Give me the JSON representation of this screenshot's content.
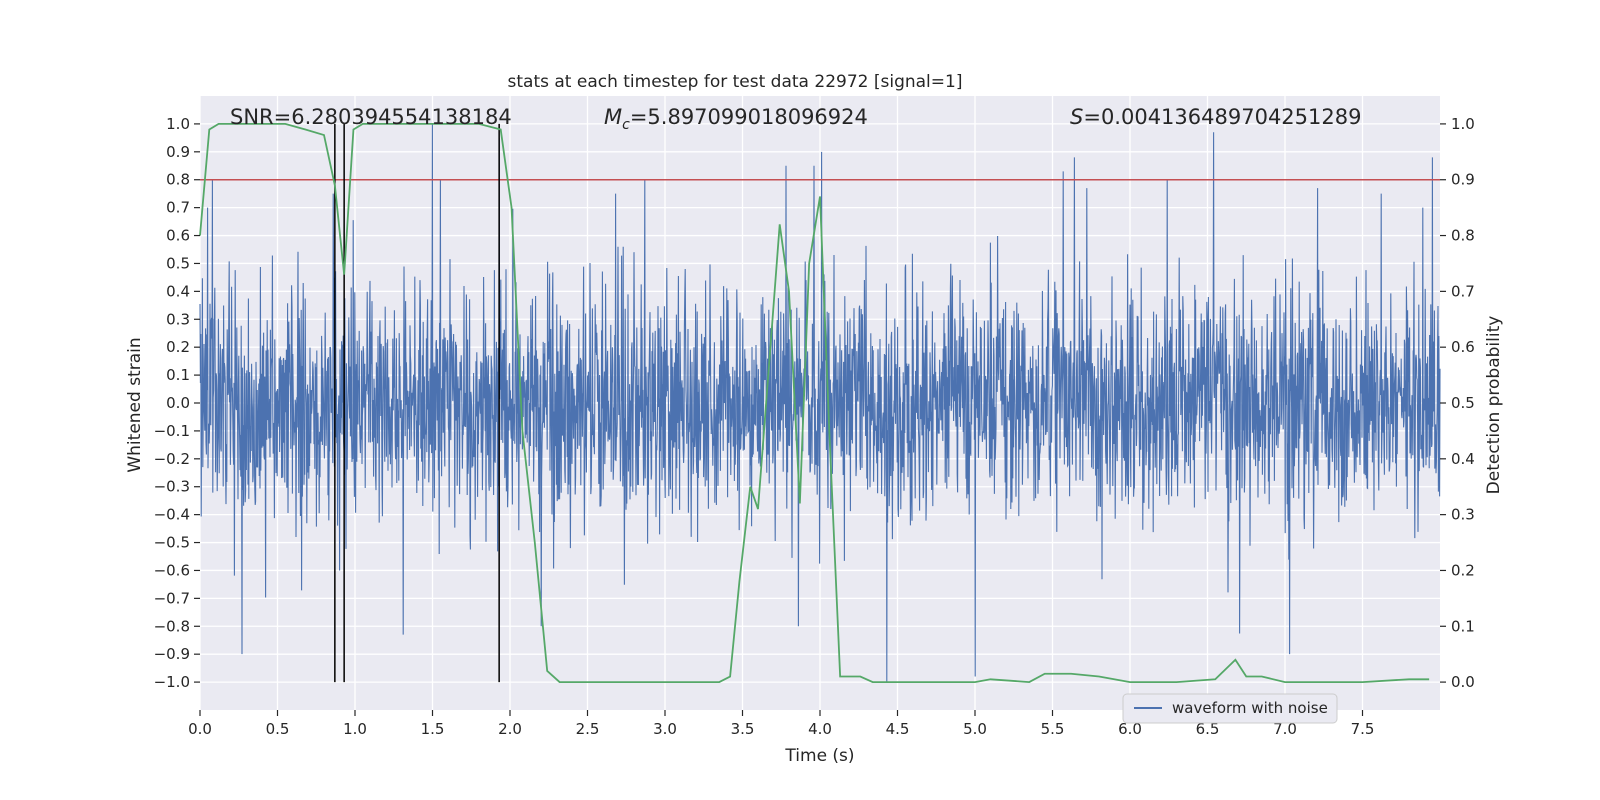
{
  "chart_data": {
    "type": "line",
    "title": "stats at each timestep for test data 22972 [signal=1]",
    "xlabel": "Time (s)",
    "ylabel_left": "Whitened strain",
    "ylabel_right": "Detection probability",
    "xlim": [
      0.0,
      8.0
    ],
    "ylim_left": [
      -1.1,
      1.1
    ],
    "ylim_right": [
      -0.05,
      1.05
    ],
    "xticks": [
      "0.0",
      "0.5",
      "1.0",
      "1.5",
      "2.0",
      "2.5",
      "3.0",
      "3.5",
      "4.0",
      "4.5",
      "5.0",
      "5.5",
      "6.0",
      "6.5",
      "7.0",
      "7.5"
    ],
    "yticks_left": [
      "1.0",
      "0.9",
      "0.8",
      "0.7",
      "0.6",
      "0.5",
      "0.4",
      "0.3",
      "0.2",
      "0.1",
      "0.0",
      "-0.1",
      "-0.2",
      "-0.3",
      "-0.4",
      "-0.5",
      "-0.6",
      "-0.7",
      "-0.8",
      "-0.9",
      "-1.0"
    ],
    "yticks_right": [
      "1.0",
      "0.9",
      "0.8",
      "0.7",
      "0.6",
      "0.5",
      "0.4",
      "0.3",
      "0.2",
      "0.1",
      "0.0"
    ],
    "annotations": {
      "snr": "SNR=6.280394554138184",
      "mc_symbol": "M",
      "mc_sub": "c",
      "mc_value": "=5.897099018096924",
      "s_symbol": "S",
      "s_value": "=0.004136489704251289"
    },
    "legend": {
      "label": "waveform with noise",
      "loc": "lower right"
    },
    "threshold": {
      "axis": "right",
      "value": 0.9,
      "color": "#c44e52"
    },
    "vertical_lines_x": [
      0.87,
      0.93,
      1.93
    ],
    "vertical_lines_range": [
      -1.0,
      1.0
    ],
    "waveform": {
      "name": "waveform with noise",
      "color": "#4c72b0",
      "sample_rate": 2048,
      "peak_times": [
        0.05,
        0.08,
        0.27,
        0.86,
        0.9,
        1.31,
        1.5,
        1.55,
        1.93,
        2.2,
        2.68,
        2.87,
        3.78,
        3.86,
        3.96,
        4.01,
        4.43,
        5.0,
        5.57,
        5.64,
        5.72,
        6.24,
        6.54,
        7.03,
        7.21,
        7.62,
        7.89,
        7.95
      ],
      "peak_values": [
        0.7,
        0.8,
        -0.9,
        0.75,
        -0.6,
        -0.83,
        1.0,
        0.8,
        0.95,
        -0.8,
        0.75,
        0.8,
        0.85,
        -0.8,
        0.85,
        0.9,
        -1.0,
        -0.98,
        0.83,
        0.88,
        0.77,
        0.8,
        0.97,
        -0.9,
        0.77,
        0.75,
        0.7,
        0.88
      ]
    },
    "probability": {
      "name": "Detection probability",
      "color": "#55a868",
      "x": [
        0.0,
        0.06,
        0.12,
        0.25,
        0.55,
        0.68,
        0.8,
        0.87,
        0.93,
        0.99,
        1.05,
        1.2,
        1.5,
        1.8,
        1.94,
        2.01,
        2.08,
        2.16,
        2.24,
        2.32,
        2.5,
        2.9,
        3.2,
        3.35,
        3.42,
        3.48,
        3.55,
        3.6,
        3.68,
        3.74,
        3.8,
        3.87,
        3.93,
        4.0,
        4.06,
        4.13,
        4.2,
        4.26,
        4.34,
        4.45,
        4.7,
        5.0,
        5.1,
        5.35,
        5.45,
        5.62,
        5.8,
        6.0,
        6.3,
        6.55,
        6.68,
        6.75,
        6.85,
        7.0,
        7.5,
        7.8,
        7.93
      ],
      "y": [
        0.8,
        0.99,
        1.0,
        1.0,
        1.0,
        0.99,
        0.98,
        0.89,
        0.73,
        0.99,
        1.0,
        1.0,
        1.0,
        1.0,
        0.99,
        0.85,
        0.45,
        0.25,
        0.02,
        0.0,
        0.0,
        0.0,
        0.0,
        0.0,
        0.01,
        0.18,
        0.35,
        0.31,
        0.6,
        0.82,
        0.7,
        0.32,
        0.75,
        0.87,
        0.45,
        0.01,
        0.01,
        0.01,
        0.0,
        0.0,
        0.0,
        0.0,
        0.005,
        0.0,
        0.015,
        0.015,
        0.01,
        0.0,
        0.0,
        0.005,
        0.04,
        0.01,
        0.01,
        0.0,
        0.0,
        0.005,
        0.005
      ]
    }
  }
}
